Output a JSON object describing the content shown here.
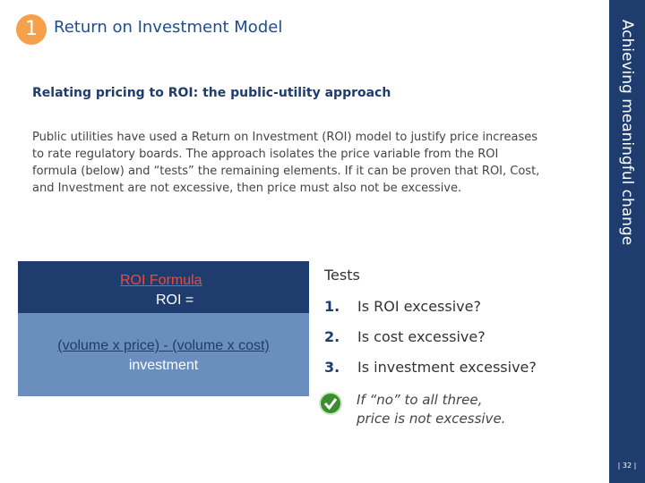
{
  "header": {
    "number": "1",
    "title": "Return on Investment Model"
  },
  "sidebar": {
    "text": "Achieving meaningful change",
    "page": "| 32 |"
  },
  "subtitle": "Relating pricing to ROI: the public-utility approach",
  "body": "Public utilities have used a Return on Investment (ROI) model to justify price increases to rate regulatory boards.  The approach isolates the price variable from the ROI formula (below) and “tests” the remaining elements.  If it can be proven that ROI, Cost, and Investment are not excessive, then price must also not be excessive.",
  "formula": {
    "heading": "ROI Formula",
    "lhs": "ROI =",
    "numerator": "(volume x price)  -  (volume x cost)",
    "denominator": "investment"
  },
  "tests": {
    "heading": "Tests",
    "items": [
      {
        "number": "1.",
        "text": "Is ROI excessive?"
      },
      {
        "number": "2.",
        "text": "Is cost excessive?"
      },
      {
        "number": "3.",
        "text": "Is investment excessive?"
      }
    ],
    "conclusion": [
      "If “no” to all three,",
      "price is not excessive."
    ]
  }
}
